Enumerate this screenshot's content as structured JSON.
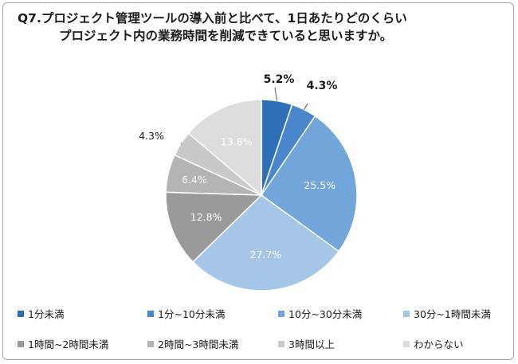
{
  "chart_data": {
    "type": "pie",
    "title_line1": "Q7.プロジェクト管理ツールの導入前と比べて、1日あたりどのくらい",
    "title_line2": "プロジェクト内の業務時間を削減できていると思いますか。",
    "slices": [
      {
        "label": "1分未満",
        "value": 5.2,
        "value_label": "5.2%",
        "color": "#2e6fba"
      },
      {
        "label": "1分~10分未満",
        "value": 4.3,
        "value_label": "4.3%",
        "color": "#4a86cc"
      },
      {
        "label": "10分~30分未満",
        "value": 25.5,
        "value_label": "25.5%",
        "color": "#72a5d9"
      },
      {
        "label": "30分~1時間未満",
        "value": 27.7,
        "value_label": "27.7%",
        "color": "#a5c6e6"
      },
      {
        "label": "1時間~2時間未満",
        "value": 12.8,
        "value_label": "12.8%",
        "color": "#9a9a9a"
      },
      {
        "label": "2時間~3時間未満",
        "value": 6.4,
        "value_label": "6.4%",
        "color": "#b4b4b4"
      },
      {
        "label": "3時間以上",
        "value": 4.3,
        "value_label": "4.3%",
        "color": "#c9c9c9"
      },
      {
        "label": "わからない",
        "value": 13.8,
        "value_label": "13.8%",
        "color": "#dcdcdc"
      }
    ],
    "legend_position": "bottom"
  }
}
